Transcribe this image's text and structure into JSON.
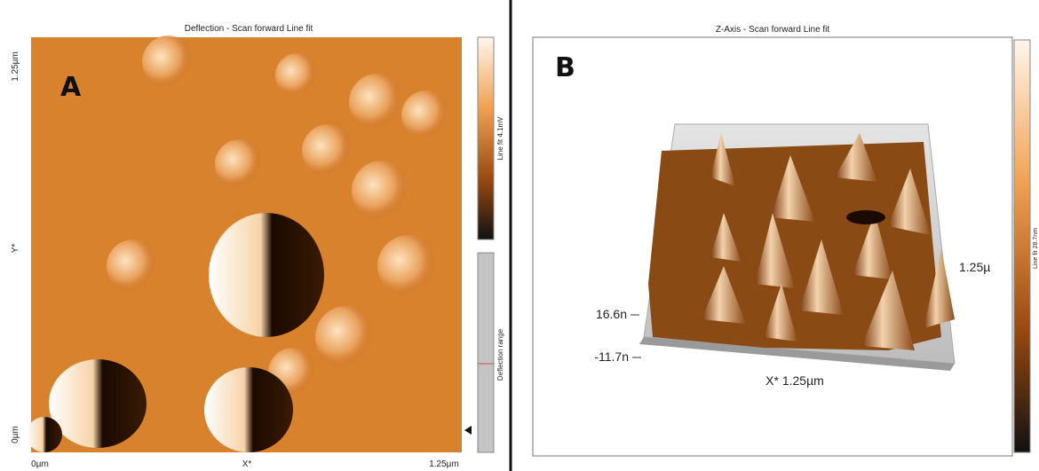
{
  "panel_a": {
    "title": "Deflection - Scan forward   Line fit",
    "label": "A",
    "y_axis": {
      "top": "1.25µm",
      "label": "Y*",
      "bottom": "0µm"
    },
    "x_axis": {
      "left": "0µm",
      "label": "X*",
      "right": "1.25µm"
    },
    "colorbar_label": "Line fit 4.1mV",
    "range_label": "Deflection range"
  },
  "panel_b": {
    "title": "Z-Axis - Scan forward   Line fit",
    "label": "B",
    "z_ticks": [
      "16.6n",
      "-11.7n"
    ],
    "x_axis_label": "X* 1.25µm",
    "y_axis_label": "1.25µ",
    "colorbar_label": "Line fit 28.7nm"
  }
}
